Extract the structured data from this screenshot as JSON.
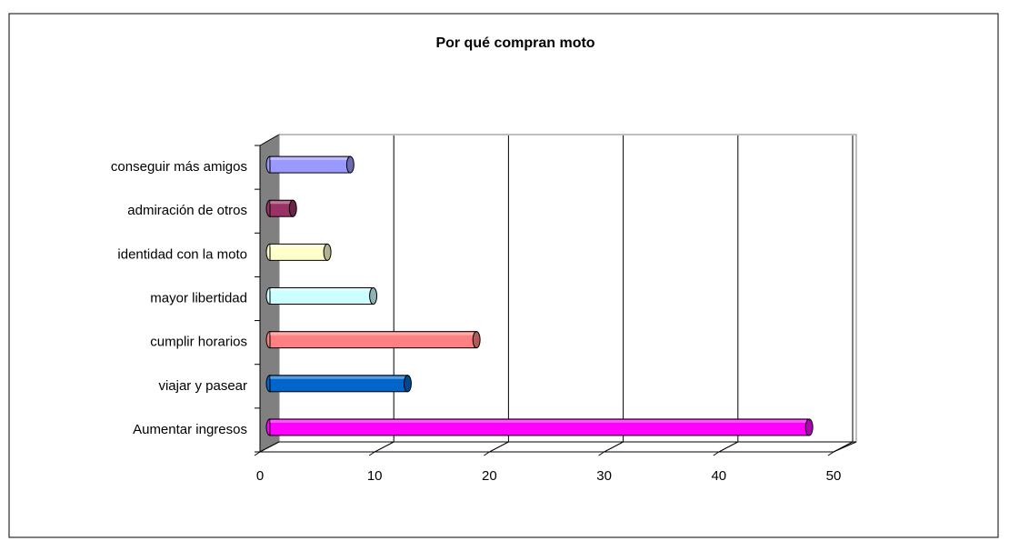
{
  "chart_data": {
    "type": "bar",
    "orientation": "horizontal",
    "title": "Por qué compran moto",
    "categories": [
      "Aumentar ingresos",
      "viajar y pasear",
      "cumplir horarios",
      "mayor libertidad",
      "identidad con la moto",
      "admiración de otros",
      "conseguir más amigos"
    ],
    "values": [
      47,
      12,
      18,
      9,
      5,
      2,
      7
    ],
    "colors": [
      "#ff00ff",
      "#0066cc",
      "#ff8080",
      "#ccffff",
      "#ffffcc",
      "#993366",
      "#9999ff"
    ],
    "xlim": [
      0,
      50
    ],
    "xticks": [
      0,
      10,
      20,
      30,
      40,
      50
    ],
    "grid": true
  }
}
